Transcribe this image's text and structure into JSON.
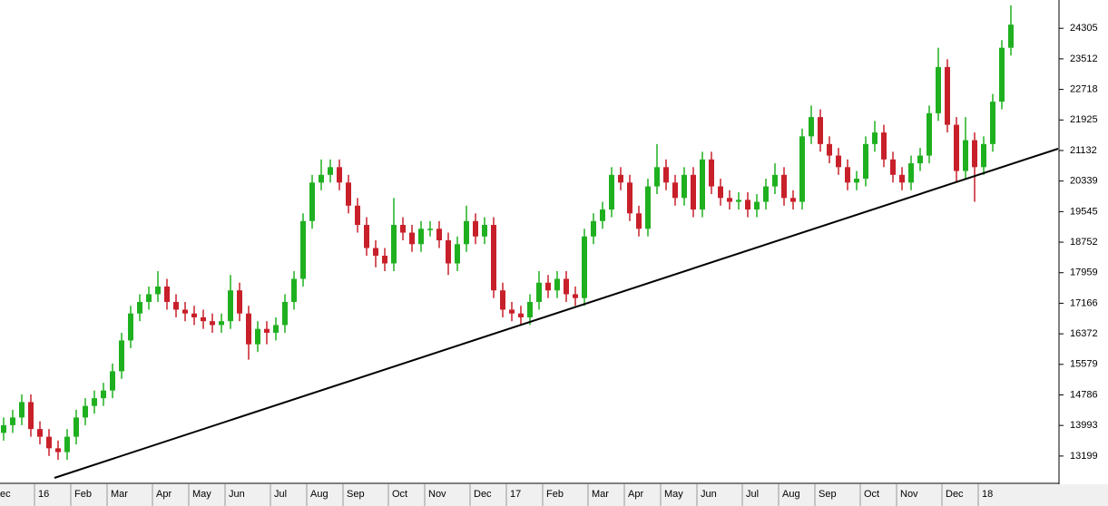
{
  "chart_data": {
    "type": "candlestick",
    "categories": [
      "ec",
      null,
      null,
      null,
      "16",
      null,
      null,
      null,
      "Feb",
      null,
      null,
      null,
      "Mar",
      null,
      null,
      null,
      null,
      "Apr",
      null,
      null,
      null,
      "May",
      null,
      null,
      null,
      "Jun",
      null,
      null,
      null,
      null,
      "Jul",
      null,
      null,
      null,
      "Aug",
      null,
      null,
      null,
      "Sep",
      null,
      null,
      null,
      null,
      "Oct",
      null,
      null,
      null,
      "Nov",
      null,
      null,
      null,
      null,
      "Dec",
      null,
      null,
      null,
      "17",
      null,
      null,
      null,
      "Feb",
      null,
      null,
      null,
      null,
      "Mar",
      null,
      null,
      null,
      "Apr",
      null,
      null,
      null,
      "May",
      null,
      null,
      null,
      "Jun",
      null,
      null,
      null,
      null,
      "Jul",
      null,
      null,
      null,
      "Aug",
      null,
      null,
      null,
      "Sep",
      null,
      null,
      null,
      null,
      "Oct",
      null,
      null,
      null,
      "Nov",
      null,
      null,
      null,
      null,
      "Dec",
      null,
      null,
      null,
      "18",
      null,
      null,
      null
    ],
    "open": [
      13800,
      14000,
      14200,
      14600,
      13900,
      13700,
      13400,
      13300,
      13700,
      14200,
      14500,
      14700,
      14900,
      15400,
      16200,
      16900,
      17200,
      17400,
      17600,
      17200,
      17000,
      16900,
      16800,
      16700,
      16600,
      16700,
      17500,
      16900,
      16100,
      16500,
      16400,
      16600,
      17200,
      17800,
      19300,
      20300,
      20500,
      20700,
      20300,
      19700,
      19200,
      18600,
      18400,
      18200,
      19200,
      19000,
      18700,
      19100,
      19100,
      18800,
      18200,
      18700,
      19300,
      18900,
      19200,
      17500,
      17000,
      16900,
      16800,
      17200,
      17700,
      17500,
      17800,
      17400,
      17300,
      18900,
      19300,
      19600,
      20500,
      20300,
      19500,
      19100,
      20200,
      20700,
      20300,
      19900,
      20500,
      19600,
      20900,
      20200,
      19900,
      19800,
      19850,
      19600,
      19800,
      20200,
      20500,
      19900,
      19800,
      21500,
      22000,
      21300,
      21000,
      20700,
      20300,
      20400,
      21300,
      21600,
      20900,
      20500,
      20300,
      20800,
      21000,
      22100,
      23300,
      21800,
      20600,
      21400,
      20700,
      21300,
      22400,
      23800
    ],
    "high": [
      14200,
      14400,
      14800,
      14800,
      14100,
      13900,
      13600,
      13900,
      14400,
      14700,
      14900,
      15100,
      15600,
      16400,
      17100,
      17400,
      17600,
      18000,
      17800,
      17400,
      17200,
      17100,
      17000,
      16900,
      16900,
      17900,
      17700,
      17100,
      16700,
      16700,
      16800,
      17400,
      18000,
      19500,
      20500,
      20900,
      20900,
      20900,
      20500,
      19900,
      19400,
      18800,
      18600,
      19900,
      19400,
      19200,
      19300,
      19300,
      19300,
      19000,
      18900,
      19700,
      19500,
      19400,
      19400,
      17700,
      17200,
      17100,
      17400,
      18000,
      17900,
      18000,
      18000,
      17600,
      19100,
      19500,
      19800,
      20700,
      20700,
      20500,
      19700,
      20400,
      21300,
      20900,
      20500,
      20700,
      20700,
      21100,
      21100,
      20400,
      20100,
      20050,
      20050,
      20000,
      20400,
      20800,
      20700,
      20100,
      21700,
      22300,
      22200,
      21500,
      21200,
      20900,
      20600,
      21500,
      21900,
      21800,
      21100,
      20700,
      21000,
      21200,
      22300,
      23800,
      23500,
      22000,
      22000,
      21600,
      21500,
      22600,
      24000,
      24900
    ],
    "low": [
      13600,
      13800,
      14000,
      13700,
      13500,
      13200,
      13100,
      13100,
      13500,
      14000,
      14300,
      14500,
      14700,
      15200,
      16000,
      16700,
      17000,
      17200,
      17000,
      16800,
      16700,
      16600,
      16500,
      16400,
      16400,
      16500,
      16700,
      15700,
      15900,
      16100,
      16200,
      16400,
      17000,
      17600,
      19100,
      20100,
      20300,
      20100,
      19500,
      19000,
      18400,
      18100,
      18000,
      18000,
      18800,
      18500,
      18500,
      18900,
      18600,
      17900,
      18000,
      18500,
      18700,
      18700,
      17300,
      16800,
      16700,
      16600,
      16600,
      17000,
      17300,
      17300,
      17200,
      17100,
      17100,
      18700,
      19100,
      19400,
      20100,
      19300,
      18900,
      18900,
      20000,
      20100,
      19700,
      19700,
      19400,
      19400,
      20000,
      19700,
      19600,
      19600,
      19400,
      19400,
      19600,
      20000,
      19700,
      19600,
      19600,
      21300,
      21100,
      20800,
      20500,
      20100,
      20100,
      20200,
      21100,
      20700,
      20300,
      20100,
      20100,
      20600,
      20800,
      21900,
      21600,
      20300,
      20400,
      19800,
      20500,
      21100,
      22200,
      23600
    ],
    "close": [
      14000,
      14200,
      14600,
      13900,
      13700,
      13400,
      13300,
      13700,
      14200,
      14500,
      14700,
      14900,
      15400,
      16200,
      16900,
      17200,
      17400,
      17600,
      17200,
      17000,
      16900,
      16800,
      16700,
      16600,
      16700,
      17500,
      16900,
      16100,
      16500,
      16400,
      16600,
      17200,
      17800,
      19300,
      20300,
      20500,
      20700,
      20300,
      19700,
      19200,
      18600,
      18400,
      18200,
      19200,
      19000,
      18700,
      19100,
      19100,
      18800,
      18200,
      18700,
      19300,
      18900,
      19200,
      17500,
      17000,
      16900,
      16800,
      17200,
      17700,
      17500,
      17800,
      17400,
      17300,
      18900,
      19300,
      19600,
      20500,
      20300,
      19500,
      19100,
      20200,
      20700,
      20300,
      19900,
      20500,
      19600,
      20900,
      20200,
      19900,
      19800,
      19850,
      19600,
      19800,
      20200,
      20500,
      19900,
      19800,
      21500,
      22000,
      21300,
      21000,
      20700,
      20300,
      20400,
      21300,
      21600,
      20900,
      20500,
      20300,
      20800,
      21000,
      22100,
      23300,
      21800,
      20600,
      21400,
      20700,
      21300,
      22400,
      23800,
      24400
    ],
    "up_color": "#1fb01f",
    "down_color": "#c8202a",
    "ylim": [
      12490,
      25040
    ],
    "yticks": [
      24305,
      23512,
      22718,
      21925,
      21132,
      20339,
      19545,
      18752,
      17959,
      17166,
      16372,
      15579,
      14786,
      13993,
      13199
    ]
  }
}
